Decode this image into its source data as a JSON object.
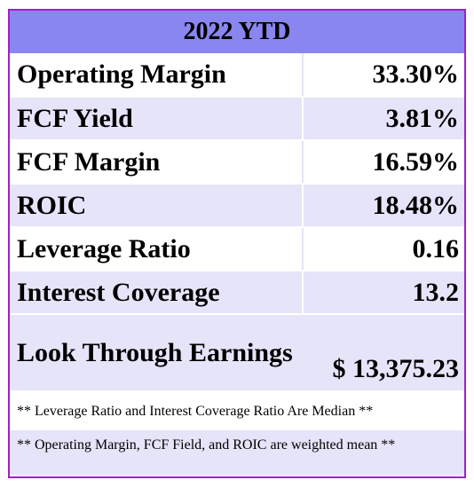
{
  "table": {
    "title": "2022 YTD",
    "rows": [
      {
        "label": "Operating Margin",
        "value": "33.30%"
      },
      {
        "label": "FCF Yield",
        "value": "3.81%"
      },
      {
        "label": "FCF Margin",
        "value": "16.59%"
      },
      {
        "label": "ROIC",
        "value": "18.48%"
      },
      {
        "label": "Leverage Ratio",
        "value": "0.16"
      },
      {
        "label": "Interest Coverage",
        "value": "13.2"
      },
      {
        "label": "Look Through Earnings",
        "value": "$ 13,375.23"
      }
    ],
    "notes": [
      "** Leverage Ratio and Interest Coverage Ratio Are Median **",
      "** Operating Margin, FCF Field, and ROIC are weighted mean **"
    ]
  },
  "colors": {
    "header_bg": "#8a86ef",
    "border": "#a020c8",
    "shaded_row": "#e6e4f8"
  }
}
